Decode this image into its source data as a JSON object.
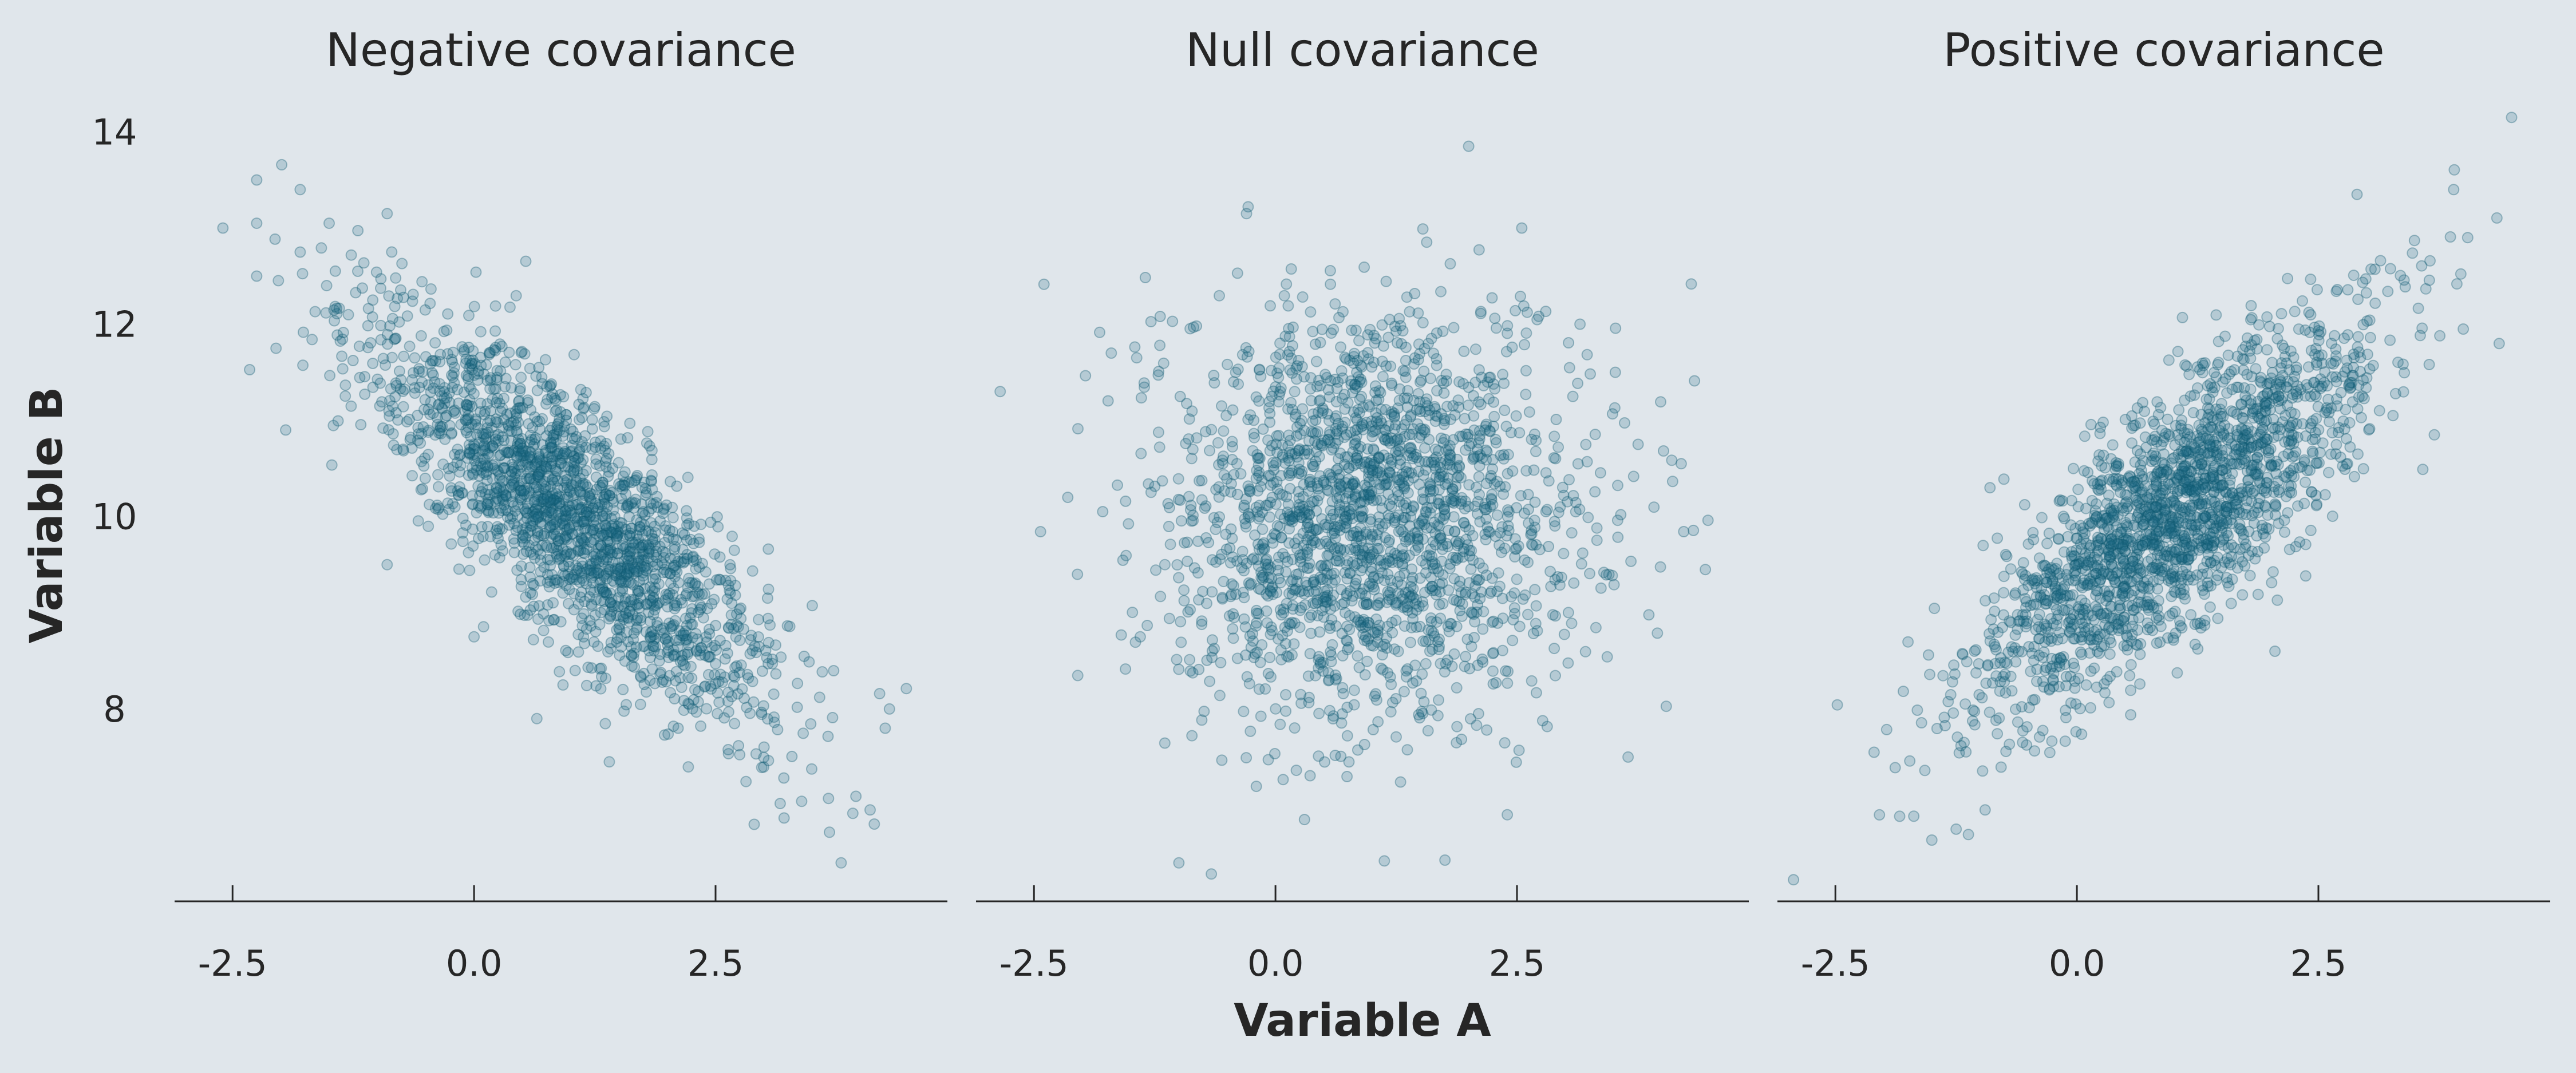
{
  "colors": {
    "background": "#e0e6eb",
    "point": "#1b6a82",
    "text": "#262626"
  },
  "figure": {
    "xlabel": "Variable A",
    "ylabel": "Variable B"
  },
  "chart_data": [
    {
      "type": "scatter",
      "title": "Negative covariance",
      "n_points": 2000,
      "cov": -1,
      "xlim": [
        -3.1,
        4.9
      ],
      "ylim": [
        6.0,
        14.3
      ],
      "xticks": [
        -2.5,
        0.0,
        2.5
      ],
      "xtick_labels": [
        "-2.5",
        "0.0",
        "2.5"
      ],
      "yticks": [
        8,
        10,
        12,
        14
      ],
      "ytick_labels": [
        "8",
        "10",
        "12",
        "14"
      ],
      "points": [
        [
          -2.6,
          13.0
        ],
        [
          -2.25,
          13.5
        ],
        [
          -2.25,
          13.05
        ],
        [
          -2.25,
          12.5
        ],
        [
          -2.05,
          11.75
        ],
        [
          -1.95,
          10.9
        ],
        [
          -1.8,
          13.4
        ],
        [
          -1.8,
          12.75
        ],
        [
          -1.5,
          13.05
        ],
        [
          -0.9,
          13.15
        ],
        [
          -0.9,
          9.5
        ],
        [
          3.8,
          6.4
        ],
        [
          4.1,
          6.95
        ],
        [
          4.3,
          8.0
        ],
        [
          2.9,
          6.8
        ],
        [
          0.0,
          8.75
        ],
        [
          0.65,
          7.9
        ],
        [
          1.4,
          7.45
        ]
      ]
    },
    {
      "type": "scatter",
      "title": "Null covariance",
      "n_points": 2000,
      "cov": 0,
      "xlim": [
        -3.1,
        4.9
      ],
      "ylim": [
        6.0,
        14.3
      ],
      "xticks": [
        -2.5,
        0.0,
        2.5
      ],
      "xtick_labels": [
        "-2.5",
        "0.0",
        "2.5"
      ],
      "yticks": [
        8,
        10,
        12,
        14
      ],
      "ytick_labels": [
        "8",
        "10",
        "12",
        "14"
      ],
      "points": [
        [
          -2.85,
          11.3
        ],
        [
          -2.15,
          10.2
        ],
        [
          -2.05,
          9.4
        ],
        [
          -1.7,
          11.7
        ],
        [
          -1.4,
          8.75
        ],
        [
          2.0,
          13.85
        ],
        [
          2.55,
          13.0
        ],
        [
          -1.0,
          6.4
        ],
        [
          0.3,
          6.85
        ],
        [
          2.4,
          6.9
        ],
        [
          3.65,
          7.5
        ],
        [
          4.45,
          9.45
        ],
        [
          4.2,
          10.55
        ],
        [
          -0.3,
          13.15
        ]
      ]
    },
    {
      "type": "scatter",
      "title": "Positive covariance",
      "n_points": 2000,
      "cov": 1,
      "xlim": [
        -3.1,
        4.9
      ],
      "ylim": [
        6.0,
        14.3
      ],
      "xticks": [
        -2.5,
        0.0,
        2.5
      ],
      "xtick_labels": [
        "-2.5",
        "0.0",
        "2.5"
      ],
      "yticks": [
        8,
        10,
        12,
        14
      ],
      "ytick_labels": [
        "8",
        "10",
        "12",
        "14"
      ],
      "points": [
        [
          4.5,
          14.15
        ],
        [
          3.9,
          13.4
        ],
        [
          2.9,
          13.35
        ],
        [
          -2.1,
          7.55
        ],
        [
          -1.25,
          6.75
        ],
        [
          -0.95,
          6.95
        ],
        [
          -0.9,
          10.3
        ],
        [
          4.0,
          11.95
        ],
        [
          3.7,
          10.85
        ],
        [
          2.05,
          8.6
        ]
      ]
    }
  ]
}
